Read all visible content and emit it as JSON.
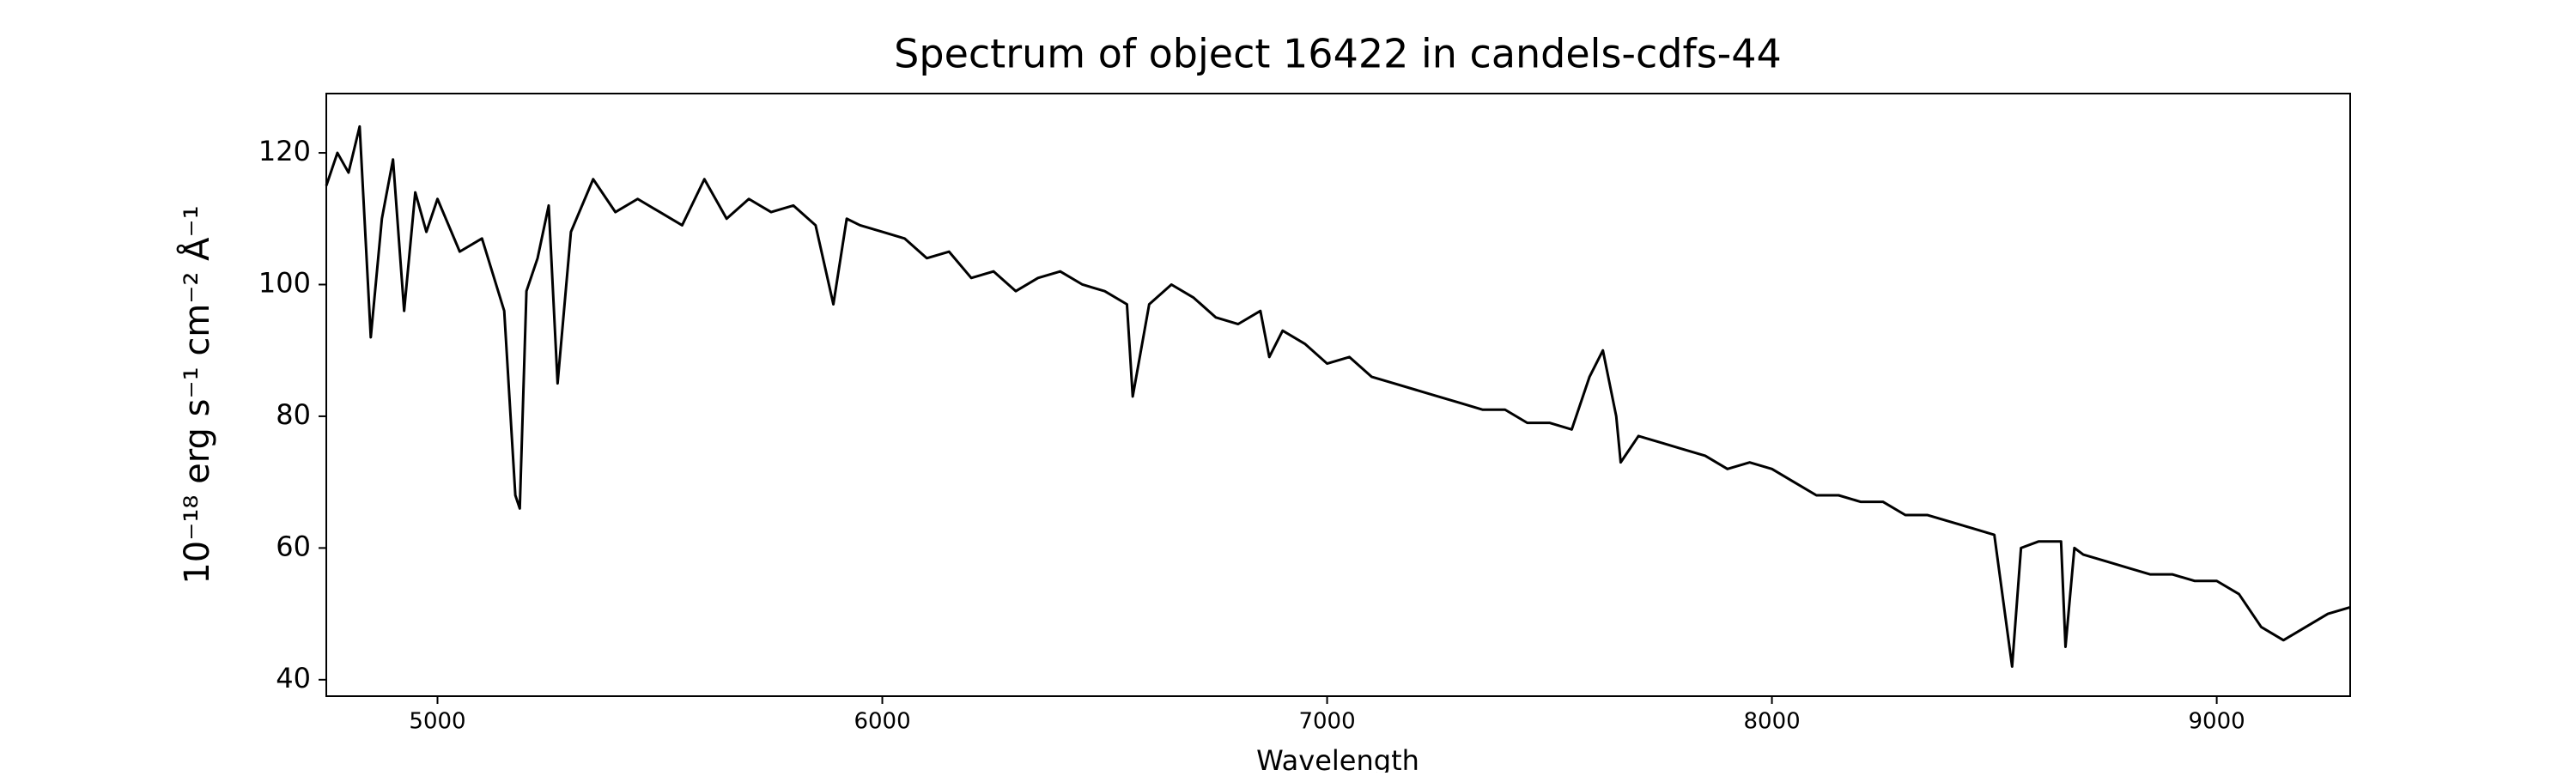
{
  "chart_data": {
    "type": "line",
    "title": "Spectrum of object 16422 in candels-cdfs-44",
    "x_label": "Wavelength",
    "y_label": "10⁻¹⁸ erg s⁻¹ cm⁻² Å⁻¹",
    "xlim": [
      4750,
      9300
    ],
    "ylim": [
      37.5,
      129
    ],
    "xticks": [
      5000,
      6000,
      7000,
      8000,
      9000
    ],
    "yticks": [
      40,
      60,
      80,
      100,
      120
    ],
    "grid": false,
    "x": [
      4750,
      4775,
      4800,
      4825,
      4850,
      4875,
      4900,
      4925,
      4950,
      4975,
      5000,
      5050,
      5100,
      5150,
      5175,
      5185,
      5200,
      5225,
      5250,
      5270,
      5300,
      5350,
      5400,
      5450,
      5500,
      5550,
      5600,
      5650,
      5700,
      5750,
      5800,
      5850,
      5890,
      5920,
      5950,
      6000,
      6050,
      6100,
      6150,
      6200,
      6250,
      6300,
      6350,
      6400,
      6450,
      6500,
      6550,
      6563,
      6600,
      6650,
      6700,
      6750,
      6800,
      6850,
      6870,
      6900,
      6950,
      7000,
      7050,
      7100,
      7150,
      7200,
      7250,
      7300,
      7350,
      7400,
      7450,
      7500,
      7550,
      7590,
      7620,
      7650,
      7660,
      7700,
      7750,
      7800,
      7850,
      7900,
      7950,
      8000,
      8050,
      8100,
      8150,
      8200,
      8250,
      8300,
      8350,
      8400,
      8450,
      8500,
      8520,
      8540,
      8560,
      8600,
      8650,
      8660,
      8680,
      8700,
      8750,
      8800,
      8850,
      8900,
      8950,
      9000,
      9050,
      9100,
      9150,
      9200,
      9250,
      9300
    ],
    "series": [
      {
        "color": "#000000",
        "values": [
          115,
          120,
          117,
          124,
          92,
          110,
          119,
          96,
          114,
          108,
          113,
          105,
          107,
          96,
          68,
          66,
          99,
          104,
          112,
          85,
          108,
          116,
          111,
          113,
          111,
          109,
          116,
          110,
          113,
          111,
          112,
          109,
          97,
          110,
          109,
          108,
          107,
          104,
          105,
          101,
          102,
          99,
          101,
          102,
          100,
          99,
          97,
          83,
          97,
          100,
          98,
          95,
          94,
          96,
          89,
          93,
          91,
          88,
          89,
          86,
          85,
          84,
          83,
          82,
          81,
          81,
          79,
          79,
          78,
          86,
          90,
          80,
          73,
          77,
          76,
          75,
          74,
          72,
          73,
          72,
          70,
          68,
          68,
          67,
          67,
          65,
          65,
          64,
          63,
          62,
          52,
          42,
          60,
          61,
          61,
          45,
          60,
          59,
          58,
          57,
          56,
          56,
          55,
          55,
          53,
          48,
          46,
          48,
          50,
          51
        ]
      }
    ]
  }
}
